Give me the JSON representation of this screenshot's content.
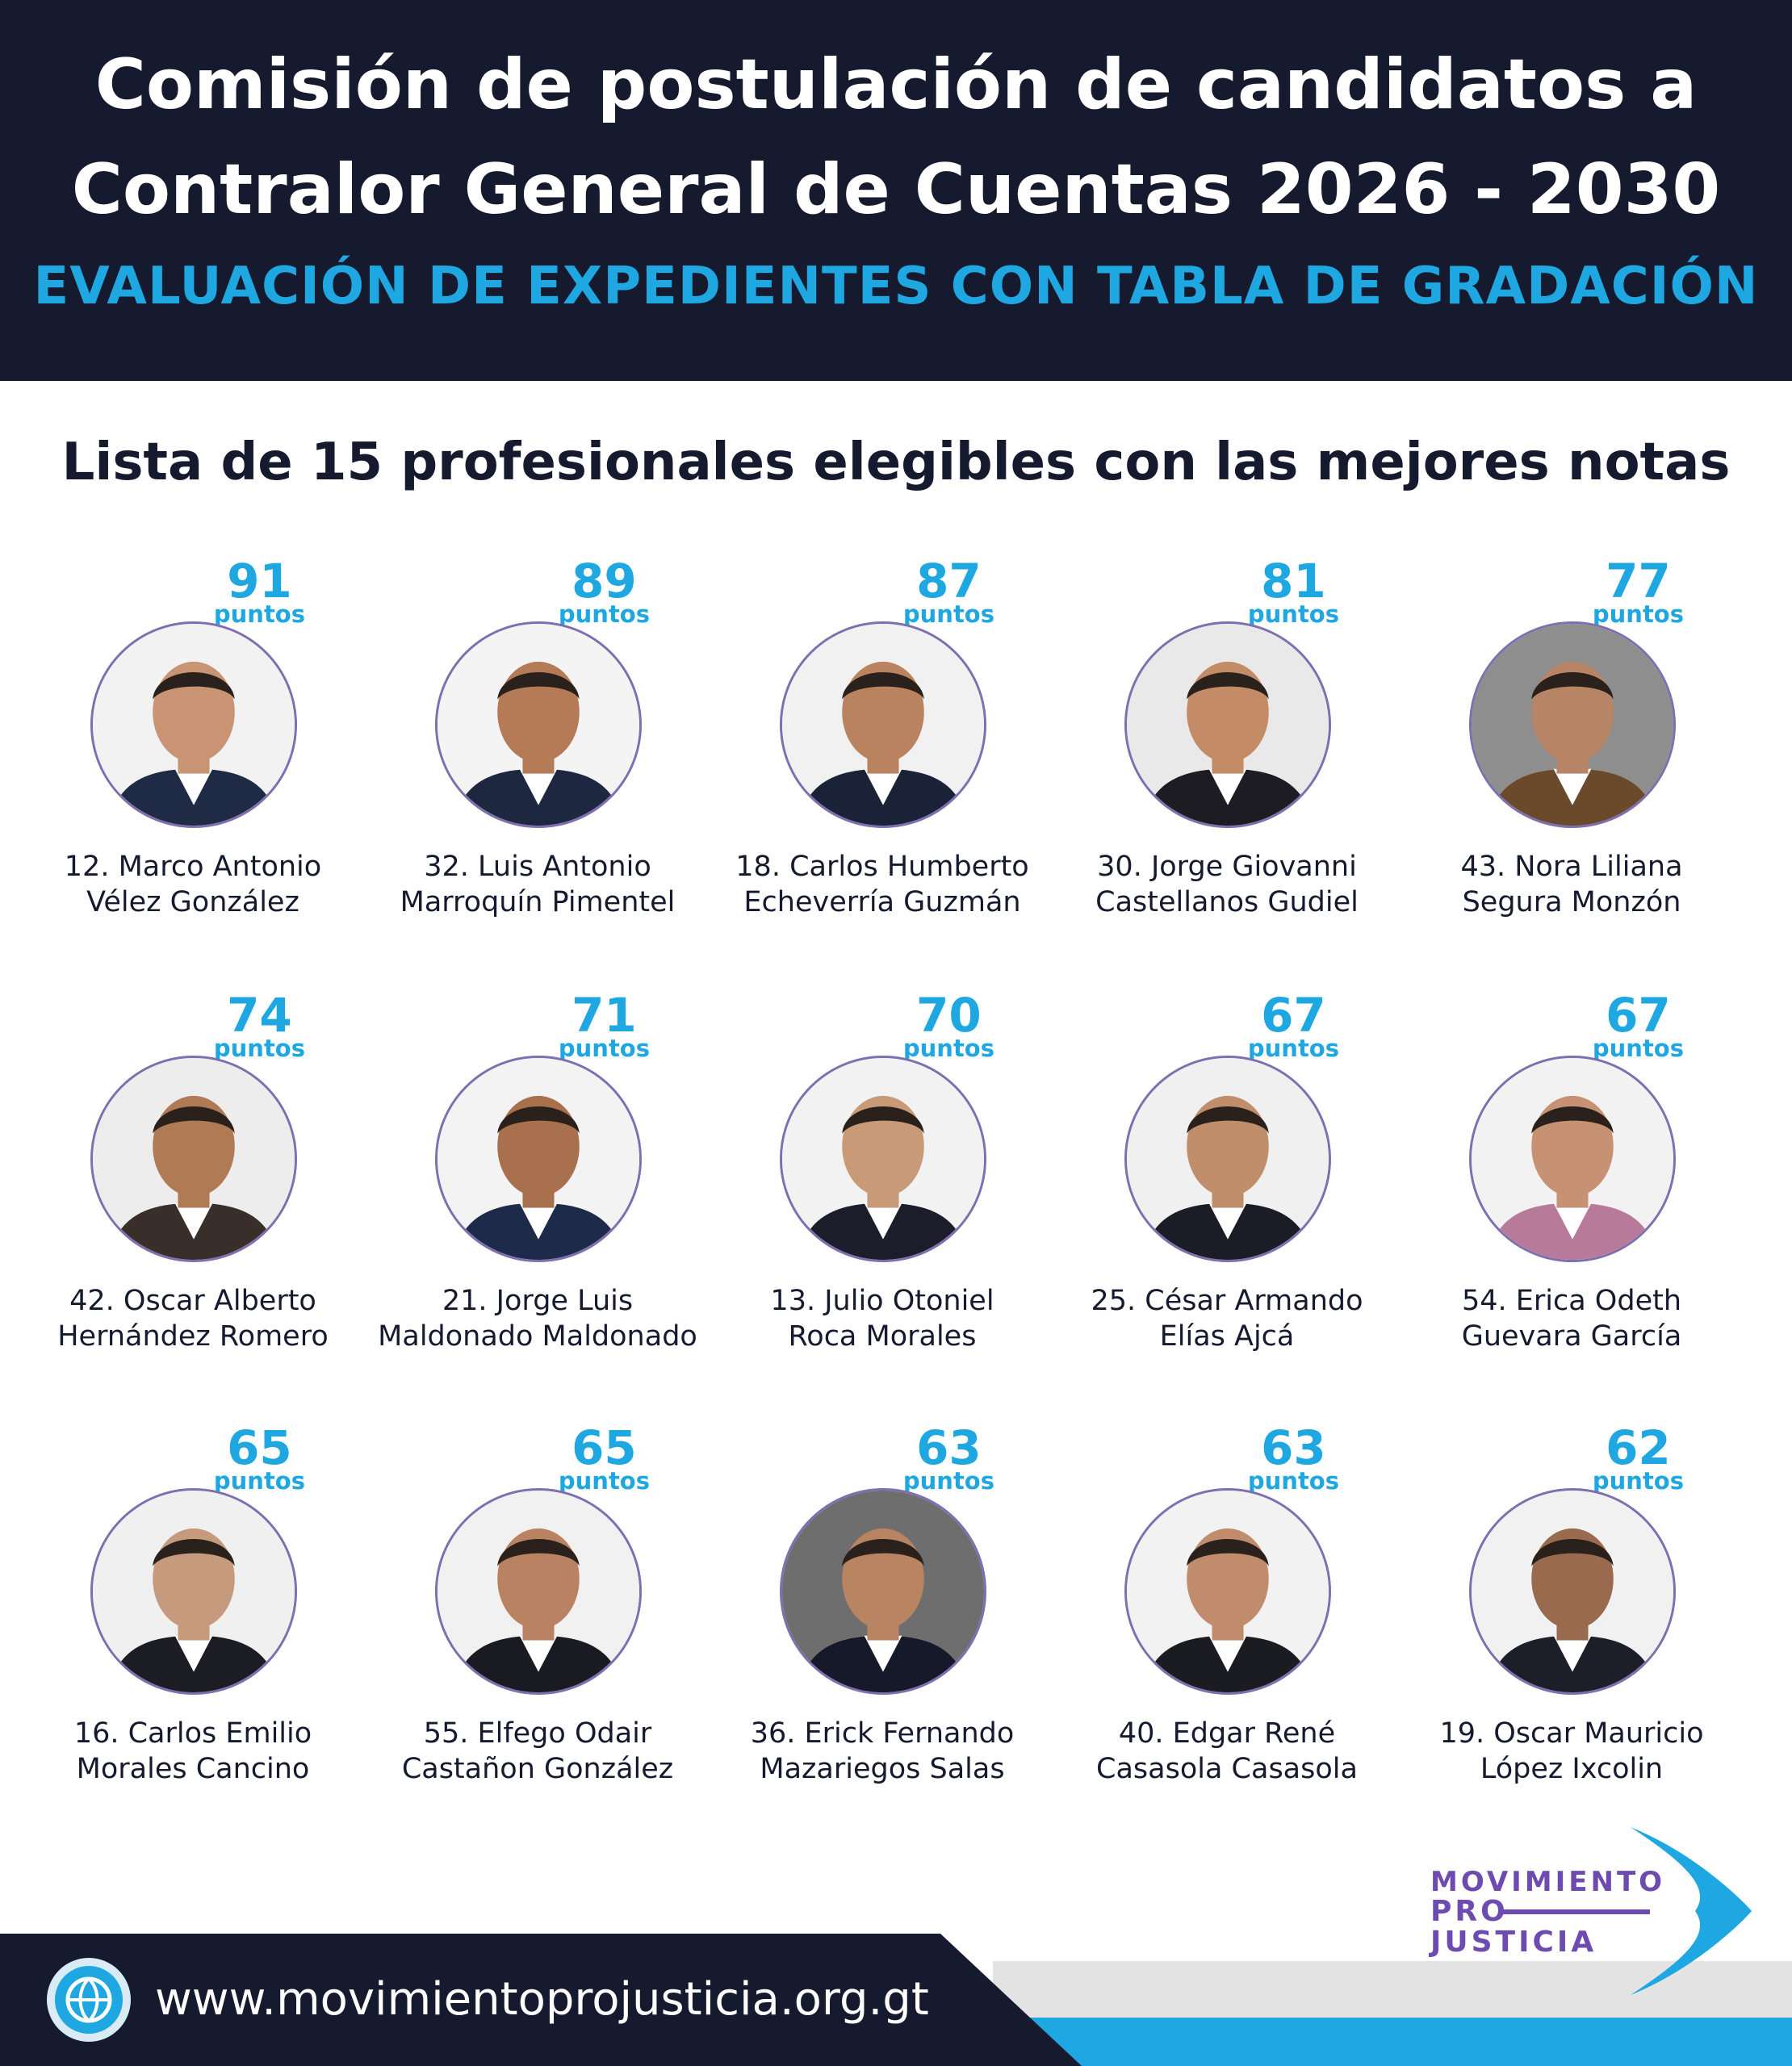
{
  "header": {
    "title_line1": "Comisión de postulación de candidatos a",
    "title_line2": "Contralor General de Cuentas 2026 - 2030",
    "subtitle": "EVALUACIÓN DE EXPEDIENTES CON TABLA DE GRADACIÓN"
  },
  "list_heading": "Lista de 15 profesionales elegibles con las mejores notas",
  "score_unit": "puntos",
  "candidates": [
    {
      "score": "91",
      "line1": "12. Marco Antonio",
      "line2": "Vélez González"
    },
    {
      "score": "89",
      "line1": "32. Luis Antonio",
      "line2": "Marroquín Pimentel"
    },
    {
      "score": "87",
      "line1": "18. Carlos Humberto",
      "line2": "Echeverría Guzmán"
    },
    {
      "score": "81",
      "line1": "30. Jorge Giovanni",
      "line2": "Castellanos Gudiel"
    },
    {
      "score": "77",
      "line1": "43. Nora Liliana",
      "line2": "Segura Monzón"
    },
    {
      "score": "74",
      "line1": "42. Oscar Alberto",
      "line2": "Hernández Romero"
    },
    {
      "score": "71",
      "line1": "21. Jorge Luis",
      "line2": "Maldonado Maldonado"
    },
    {
      "score": "70",
      "line1": "13. Julio Otoniel",
      "line2": "Roca Morales"
    },
    {
      "score": "67",
      "line1": "25. César Armando",
      "line2": "Elías Ajcá"
    },
    {
      "score": "67",
      "line1": "54. Erica Odeth",
      "line2": "Guevara García"
    },
    {
      "score": "65",
      "line1": "16. Carlos Emilio",
      "line2": "Morales Cancino"
    },
    {
      "score": "65",
      "line1": "55. Elfego Odair",
      "line2": "Castañon González"
    },
    {
      "score": "63",
      "line1": "36. Erick Fernando",
      "line2": "Mazariegos Salas"
    },
    {
      "score": "63",
      "line1": "40. Edgar René",
      "line2": "Casasola Casasola"
    },
    {
      "score": "62",
      "line1": "19. Oscar Mauricio",
      "line2": "López Ixcolin"
    }
  ],
  "footer": {
    "url": "www.movimientoprojusticia.org.gt",
    "logo_line1": "MOVIMIENTO",
    "logo_line2": "PRO",
    "logo_line3": "JUSTICIA"
  },
  "colors": {
    "navy": "#161a2e",
    "accent_blue": "#1ea7e0",
    "logo_purple": "#6e4bb0"
  }
}
